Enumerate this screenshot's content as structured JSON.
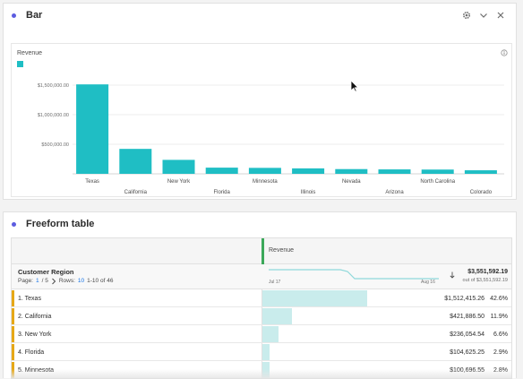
{
  "bar_panel": {
    "title": "Bar",
    "icons": [
      "gear-icon",
      "chevron-down-icon",
      "close-icon"
    ],
    "legend_label": "Revenue",
    "accent_color": "#1fbec4"
  },
  "chart_data": {
    "type": "bar",
    "categories": [
      "Texas",
      "California",
      "New York",
      "Florida",
      "Minnesota",
      "Illinois",
      "Nevada",
      "Arizona",
      "North Carolina",
      "Colorado"
    ],
    "series": [
      {
        "name": "Revenue",
        "values": [
          1512415.26,
          421886.5,
          236054.54,
          104625.25,
          100696.55,
          92000,
          80000,
          75000,
          72000,
          60000
        ]
      }
    ],
    "ytick_labels": [
      "$1,500,000.00",
      "$1,000,000.00",
      "$500,000.00"
    ],
    "ytick_values": [
      1500000,
      1000000,
      500000
    ],
    "ylim": [
      0,
      1500000
    ],
    "grid": true,
    "legend": "top-left"
  },
  "table_panel": {
    "title": "Freeform table",
    "metric": "Revenue",
    "dimension": "Customer Region",
    "pager": {
      "page_label": "Page:",
      "page_current": "1",
      "page_sep": "/ 5",
      "next_icon": "chevron-right-icon",
      "rows_label": "Rows:",
      "rows_value": "10",
      "range": "1-10 of 46"
    },
    "spark_start": "Jul 17",
    "spark_end": "Aug 16",
    "total": "$3,551,592.19",
    "total_sub": "out of $3,551,592.19",
    "rows": [
      {
        "label": "1.  Texas",
        "value": "$1,512,415.26",
        "pct": "42.6%",
        "share": 0.426
      },
      {
        "label": "2.  California",
        "value": "$421,886.50",
        "pct": "11.9%",
        "share": 0.119
      },
      {
        "label": "3.  New York",
        "value": "$236,054.54",
        "pct": "6.6%",
        "share": 0.066
      },
      {
        "label": "4.  Florida",
        "value": "$104,625.25",
        "pct": "2.9%",
        "share": 0.029
      },
      {
        "label": "5.  Minnesota",
        "value": "$100,696.55",
        "pct": "2.8%",
        "share": 0.028
      }
    ]
  }
}
